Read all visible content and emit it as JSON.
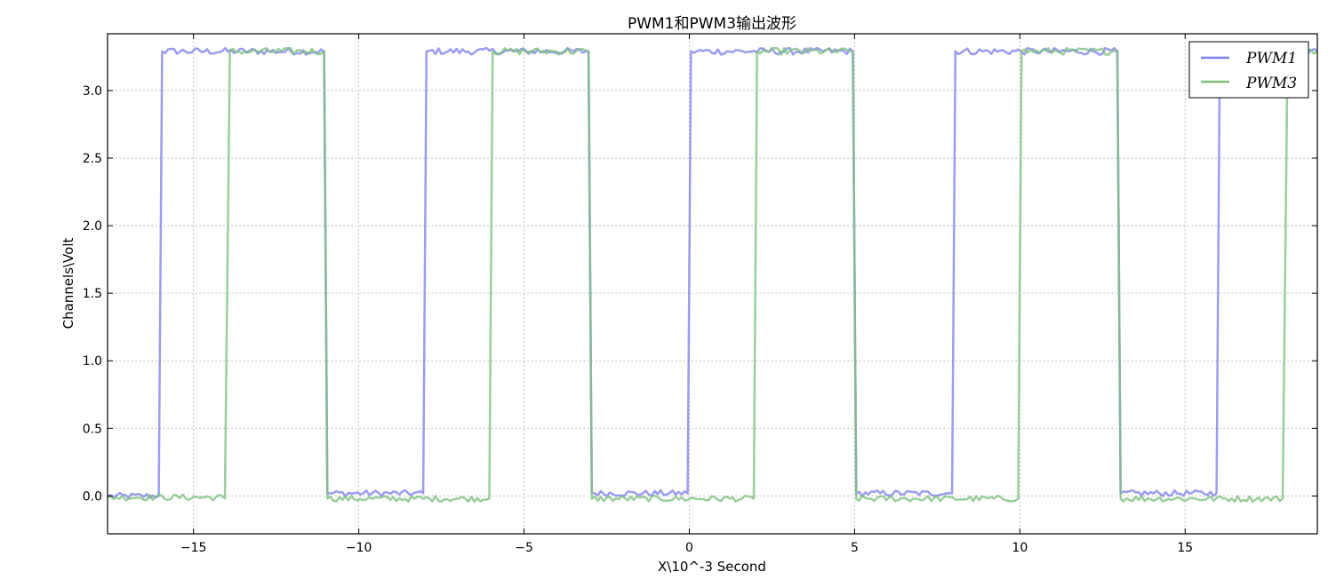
{
  "chart_data": {
    "type": "line",
    "title": "PWM1和PWM3输出波形",
    "xlabel": "X\\10^-3 Second",
    "ylabel": "Channels\\Volt",
    "xlim": [
      -17.6,
      19.0
    ],
    "ylim": [
      -0.28,
      3.42
    ],
    "xticks": [
      -15,
      -10,
      -5,
      0,
      5,
      10,
      15
    ],
    "xtick_labels": [
      "−15",
      "−10",
      "−5",
      "0",
      "5",
      "10",
      "15"
    ],
    "yticks": [
      0.0,
      0.5,
      1.0,
      1.5,
      2.0,
      2.5,
      3.0
    ],
    "ytick_labels": [
      "0.0",
      "0.5",
      "1.0",
      "1.5",
      "2.0",
      "2.5",
      "3.0"
    ],
    "grid": true,
    "legend_position": "top-right",
    "series": [
      {
        "name": "PWM1",
        "label": "PWM1",
        "color": "#8080ee",
        "high": 3.29,
        "low": 0.02,
        "x": [
          -17.6,
          -16.05,
          -15.95,
          -11.05,
          -10.95,
          -8.05,
          -7.95,
          -3.05,
          -2.95,
          -0.05,
          0.05,
          4.95,
          5.05,
          7.95,
          8.05,
          12.95,
          13.05,
          15.95,
          16.05,
          19.0
        ],
        "y": [
          0.0,
          0.0,
          3.29,
          3.29,
          0.02,
          0.02,
          3.29,
          3.29,
          0.02,
          0.02,
          3.29,
          3.29,
          0.02,
          0.02,
          3.29,
          3.29,
          0.02,
          0.02,
          3.29,
          3.29
        ]
      },
      {
        "name": "PWM3",
        "label": "PWM3",
        "color": "#7fbf7f",
        "high": 3.29,
        "low": -0.02,
        "x": [
          -17.6,
          -14.05,
          -13.9,
          -11.05,
          -10.95,
          -6.05,
          -5.95,
          -3.05,
          -2.95,
          1.95,
          2.05,
          4.95,
          5.05,
          9.95,
          10.05,
          12.95,
          13.05,
          17.95,
          18.1,
          19.0
        ],
        "y": [
          -0.01,
          -0.02,
          3.29,
          3.29,
          -0.02,
          -0.02,
          3.29,
          3.29,
          -0.02,
          -0.02,
          3.29,
          3.29,
          -0.02,
          -0.02,
          3.29,
          3.29,
          -0.02,
          -0.02,
          3.29,
          3.29
        ]
      }
    ]
  }
}
